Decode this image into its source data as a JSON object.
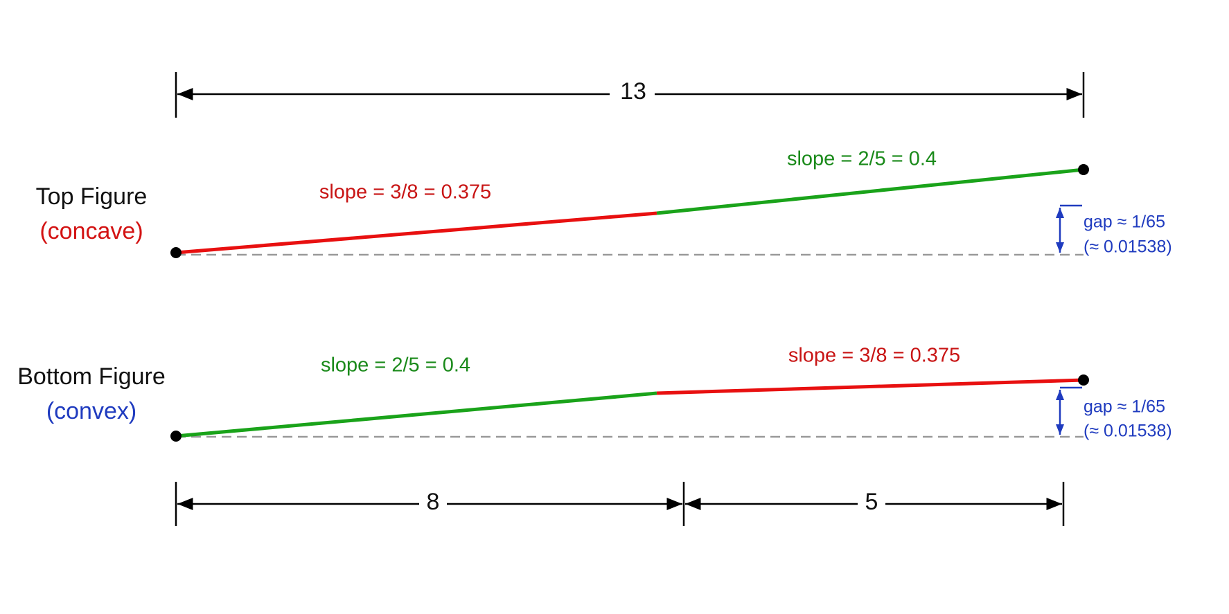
{
  "dimensions": {
    "total": "13",
    "left": "8",
    "right": "5"
  },
  "top_figure": {
    "title": "Top Figure",
    "subtitle": "(concave)",
    "left_slope": "slope = 3/8 = 0.375",
    "right_slope": "slope = 2/5 = 0.4",
    "gap": "gap ≈ 1/65",
    "gap_decimal": "(≈ 0.01538)"
  },
  "bottom_figure": {
    "title": "Bottom Figure",
    "subtitle": "(convex)",
    "left_slope": "slope = 2/5 = 0.4",
    "right_slope": "slope = 3/8 = 0.375",
    "gap": "gap ≈ 1/65",
    "gap_decimal": "(≈ 0.01538)"
  }
}
